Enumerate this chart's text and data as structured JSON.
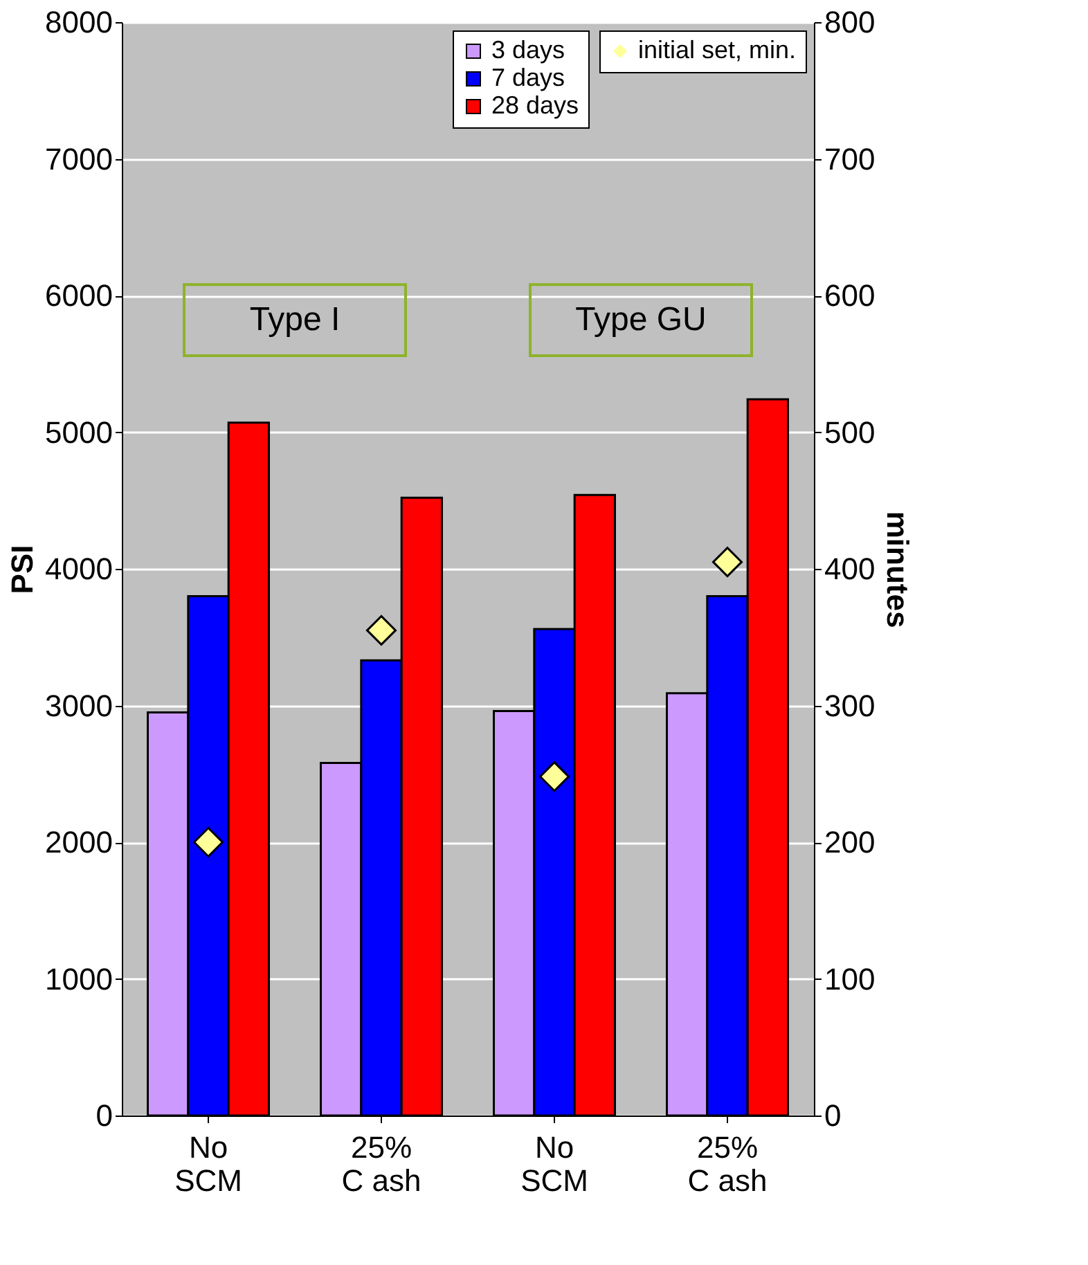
{
  "chart_data": {
    "type": "bar",
    "ylabel": "PSI",
    "y2label": "minutes",
    "categories": [
      "No SCM",
      "25% C ash",
      "No SCM",
      "25% C ash"
    ],
    "series": [
      {
        "name": "3 days",
        "color": "#cc99ff",
        "values": [
          2950,
          2580,
          2960,
          3090
        ]
      },
      {
        "name": "7 days",
        "color": "#0000ff",
        "values": [
          3800,
          3330,
          3560,
          3800
        ]
      },
      {
        "name": "28 days",
        "color": "#ff0000",
        "values": [
          5070,
          4520,
          4540,
          5240
        ]
      },
      {
        "name": "initial set, min.",
        "type": "scatter",
        "axis": "y2",
        "marker": "diamond",
        "color": "#ffff99",
        "values": [
          200,
          355,
          248,
          405
        ]
      }
    ],
    "ylim": [
      0,
      8000
    ],
    "yticks": [
      0,
      1000,
      2000,
      3000,
      4000,
      5000,
      6000,
      7000,
      8000
    ],
    "y2lim": [
      0,
      800
    ],
    "y2ticks": [
      0,
      100,
      200,
      300,
      400,
      500,
      600,
      700,
      800
    ],
    "annotations": [
      "Type I",
      "Type GU"
    ],
    "grid": "y",
    "legend": "top right"
  }
}
